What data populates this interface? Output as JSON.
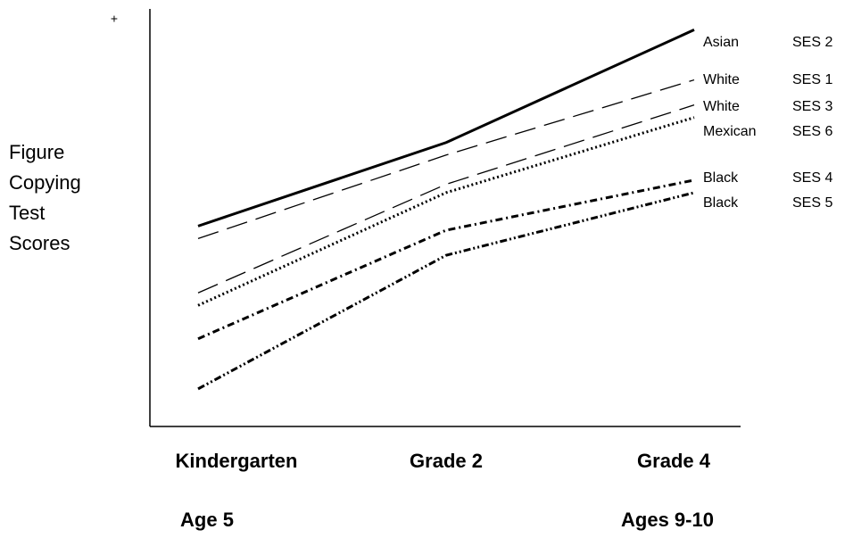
{
  "chart_data": {
    "type": "line",
    "annotations": [
      "+"
    ],
    "y_label": [
      "Figure",
      "Copying",
      "Test",
      "Scores"
    ],
    "categories": [
      "Kindergarten",
      "Grade 2",
      "Grade 4"
    ],
    "sublabels": [
      "Age 5",
      null,
      "Ages 9-10"
    ],
    "ylim": [
      0,
      100
    ],
    "series": [
      {
        "name": "Asian",
        "ses": "SES 2",
        "color": "#000000",
        "dash": "solid",
        "values": [
          48,
          68,
          95
        ]
      },
      {
        "name": "White",
        "ses": "SES 1",
        "color": "#000000",
        "dash": "long-dash",
        "values": [
          45,
          65,
          83
        ]
      },
      {
        "name": "White",
        "ses": "SES 3",
        "color": "#000000",
        "dash": "long-dash",
        "values": [
          32,
          58,
          77
        ]
      },
      {
        "name": "Mexican",
        "ses": "SES 6",
        "color": "#000000",
        "dash": "dotted",
        "values": [
          29,
          56,
          74
        ]
      },
      {
        "name": "Black",
        "ses": "SES 4",
        "color": "#000000",
        "dash": "dash-dot",
        "values": [
          21,
          47,
          59
        ]
      },
      {
        "name": "Black",
        "ses": "SES 5",
        "color": "#000000",
        "dash": "dash-dot-dot",
        "values": [
          9,
          41,
          56
        ]
      }
    ]
  }
}
